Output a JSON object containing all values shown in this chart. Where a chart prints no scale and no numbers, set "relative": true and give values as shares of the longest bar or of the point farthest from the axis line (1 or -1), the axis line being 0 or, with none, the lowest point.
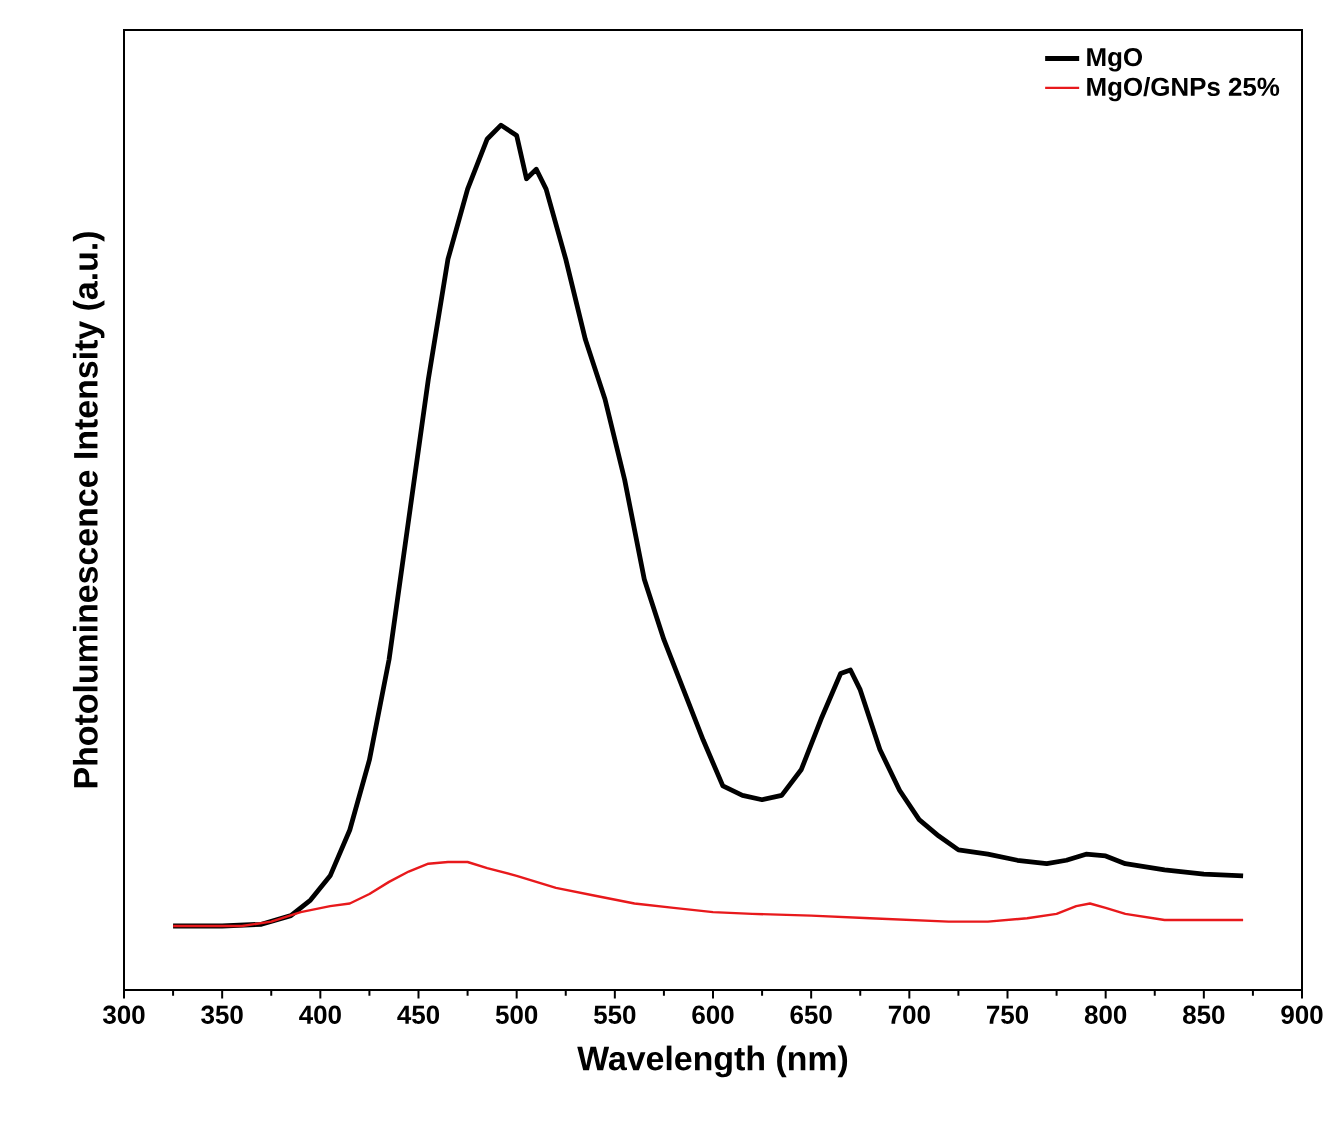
{
  "chart_data": {
    "type": "line",
    "xlabel": "Wavelength (nm)",
    "ylabel": "Photoluminescence Intensity (a.u.)",
    "relative": true,
    "xlim": [
      300,
      900
    ],
    "xticks": [
      300,
      350,
      400,
      450,
      500,
      550,
      600,
      650,
      700,
      750,
      800,
      850,
      900
    ],
    "legend": "top right",
    "marker": "none",
    "line_style": "solid",
    "grid": false,
    "series": [
      {
        "name": "MgO",
        "color": "#000000",
        "x": [
          325,
          350,
          370,
          385,
          395,
          405,
          415,
          425,
          435,
          445,
          455,
          465,
          475,
          485,
          492,
          500,
          505,
          510,
          515,
          525,
          535,
          545,
          555,
          565,
          575,
          585,
          595,
          605,
          615,
          625,
          635,
          645,
          655,
          665,
          670,
          675,
          685,
          695,
          705,
          715,
          725,
          740,
          755,
          770,
          780,
          790,
          800,
          810,
          830,
          850,
          870
        ],
        "values": [
          0.074,
          0.074,
          0.076,
          0.086,
          0.104,
          0.132,
          0.185,
          0.266,
          0.382,
          0.544,
          0.706,
          0.845,
          0.926,
          0.984,
          1,
          0.988,
          0.938,
          0.949,
          0.926,
          0.845,
          0.752,
          0.683,
          0.59,
          0.475,
          0.405,
          0.347,
          0.289,
          0.236,
          0.225,
          0.22,
          0.225,
          0.255,
          0.313,
          0.366,
          0.37,
          0.347,
          0.278,
          0.231,
          0.197,
          0.178,
          0.162,
          0.157,
          0.15,
          0.146,
          0.15,
          0.157,
          0.155,
          0.146,
          0.139,
          0.134,
          0.132
        ]
      },
      {
        "name": "MgO/GNPs 25%",
        "color": "#e8191c",
        "x": [
          325,
          360,
          375,
          390,
          405,
          415,
          425,
          435,
          445,
          455,
          465,
          475,
          485,
          500,
          520,
          540,
          560,
          580,
          600,
          620,
          650,
          680,
          700,
          720,
          740,
          760,
          775,
          785,
          792,
          800,
          810,
          830,
          850,
          870
        ],
        "values": [
          0.074,
          0.074,
          0.079,
          0.09,
          0.097,
          0.1,
          0.111,
          0.125,
          0.137,
          0.146,
          0.148,
          0.148,
          0.141,
          0.132,
          0.118,
          0.109,
          0.1,
          0.095,
          0.09,
          0.088,
          0.086,
          0.083,
          0.081,
          0.079,
          0.079,
          0.083,
          0.088,
          0.097,
          0.1,
          0.095,
          0.088,
          0.081,
          0.081,
          0.081
        ]
      }
    ]
  }
}
